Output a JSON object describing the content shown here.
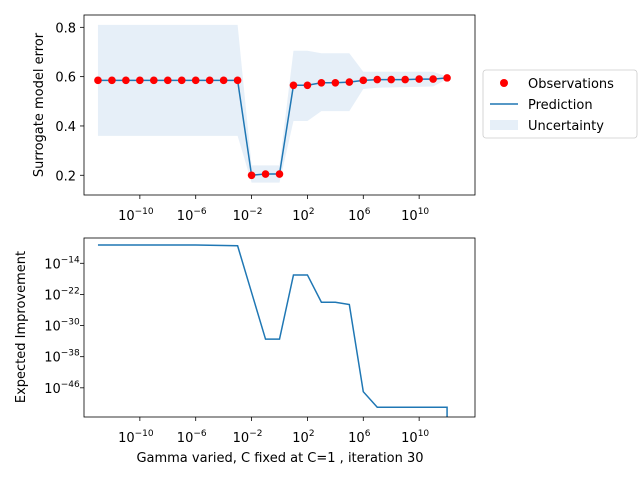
{
  "chart_data": [
    {
      "type": "line",
      "title": "",
      "xlabel": "",
      "ylabel": "Surrogate model error",
      "xscale": "log",
      "xlim": [
        1e-14,
        100000000000000.0
      ],
      "ylim": [
        0.12,
        0.85
      ],
      "xticks": [
        {
          "base": "10",
          "exp": "−10",
          "value": 1e-10
        },
        {
          "base": "10",
          "exp": "−6",
          "value": 1e-06
        },
        {
          "base": "10",
          "exp": "−2",
          "value": 0.01
        },
        {
          "base": "10",
          "exp": "2",
          "value": 100.0
        },
        {
          "base": "10",
          "exp": "6",
          "value": 1000000.0
        },
        {
          "base": "10",
          "exp": "10",
          "value": 10000000000.0
        }
      ],
      "yticks": [
        {
          "label": "0.2",
          "value": 0.2
        },
        {
          "label": "0.4",
          "value": 0.4
        },
        {
          "label": "0.6",
          "value": 0.6
        },
        {
          "label": "0.8",
          "value": 0.8
        }
      ],
      "grid": false,
      "legend": {
        "position": "right-outside",
        "entries": [
          "Observations",
          "Prediction",
          "Uncertainty"
        ]
      },
      "series": [
        {
          "name": "Observations",
          "kind": "scatter",
          "color": "#ff0000",
          "x": [
            1e-13,
            1e-12,
            1e-11,
            1e-10,
            1e-09,
            1e-08,
            1e-07,
            1e-06,
            1e-05,
            0.0001,
            0.001,
            0.01,
            0.1,
            1,
            10,
            100,
            1000.0,
            10000.0,
            100000.0,
            1000000.0,
            10000000.0,
            100000000.0,
            1000000000.0,
            10000000000.0,
            100000000000.0,
            1000000000000.0
          ],
          "y": [
            0.585,
            0.585,
            0.585,
            0.585,
            0.585,
            0.585,
            0.585,
            0.585,
            0.585,
            0.585,
            0.585,
            0.2,
            0.205,
            0.205,
            0.565,
            0.565,
            0.575,
            0.575,
            0.578,
            0.585,
            0.588,
            0.588,
            0.588,
            0.59,
            0.59,
            0.595
          ]
        },
        {
          "name": "Prediction",
          "kind": "line",
          "color": "#1f77b4",
          "x": [
            1e-13,
            1e-12,
            1e-11,
            1e-10,
            1e-09,
            1e-08,
            1e-07,
            1e-06,
            1e-05,
            0.0001,
            0.001,
            0.01,
            0.1,
            1,
            10,
            100,
            1000.0,
            10000.0,
            100000.0,
            1000000.0,
            10000000.0,
            100000000.0,
            1000000000.0,
            10000000000.0,
            100000000000.0,
            1000000000000.0
          ],
          "y": [
            0.585,
            0.585,
            0.585,
            0.585,
            0.585,
            0.585,
            0.585,
            0.585,
            0.585,
            0.585,
            0.585,
            0.2,
            0.205,
            0.205,
            0.565,
            0.565,
            0.575,
            0.575,
            0.578,
            0.585,
            0.588,
            0.588,
            0.588,
            0.59,
            0.59,
            0.595
          ]
        },
        {
          "name": "Uncertainty",
          "kind": "band",
          "color": "#e6eff8",
          "x": [
            1e-13,
            0.001,
            0.01,
            1,
            10,
            100,
            1000.0,
            100000.0,
            1000000.0,
            10000000.0,
            100000000000.0,
            1000000000000.0
          ],
          "upper": [
            0.81,
            0.81,
            0.24,
            0.24,
            0.705,
            0.705,
            0.695,
            0.695,
            0.62,
            0.62,
            0.62,
            0.6
          ],
          "lower": [
            0.36,
            0.36,
            0.17,
            0.17,
            0.42,
            0.42,
            0.46,
            0.46,
            0.55,
            0.555,
            0.56,
            0.59
          ]
        }
      ]
    },
    {
      "type": "line",
      "title": "",
      "xlabel": "Gamma varied, C fixed at C=1 , iteration 30",
      "ylabel": "Expected Improvement",
      "xscale": "log",
      "yscale": "log",
      "xlim": [
        1e-14,
        100000000000000.0
      ],
      "ylim_exp": [
        -53.5,
        -7.5
      ],
      "xticks": [
        {
          "base": "10",
          "exp": "−10",
          "value": 1e-10
        },
        {
          "base": "10",
          "exp": "−6",
          "value": 1e-06
        },
        {
          "base": "10",
          "exp": "−2",
          "value": 0.01
        },
        {
          "base": "10",
          "exp": "2",
          "value": 100.0
        },
        {
          "base": "10",
          "exp": "6",
          "value": 1000000.0
        },
        {
          "base": "10",
          "exp": "10",
          "value": 10000000000.0
        }
      ],
      "yticks": [
        {
          "base": "10",
          "exp": "−14",
          "value": -14
        },
        {
          "base": "10",
          "exp": "−22",
          "value": -22
        },
        {
          "base": "10",
          "exp": "−30",
          "value": -30
        },
        {
          "base": "10",
          "exp": "−38",
          "value": -38
        },
        {
          "base": "10",
          "exp": "−46",
          "value": -46
        }
      ],
      "grid": false,
      "series": [
        {
          "name": "Expected Improvement",
          "kind": "line",
          "color": "#1f77b4",
          "x": [
            1e-13,
            1e-06,
            0.001,
            0.1,
            1,
            10,
            100,
            1000.0,
            10000.0,
            100000.0,
            1000000.0,
            10000000.0,
            1000000000000.0,
            1000000000000.0
          ],
          "y_exp": [
            -9.3,
            -9.3,
            -9.5,
            -33.5,
            -33.5,
            -17,
            -17,
            -24,
            -24,
            -24.6,
            -47,
            -51,
            -51,
            -53.5
          ]
        }
      ]
    }
  ]
}
